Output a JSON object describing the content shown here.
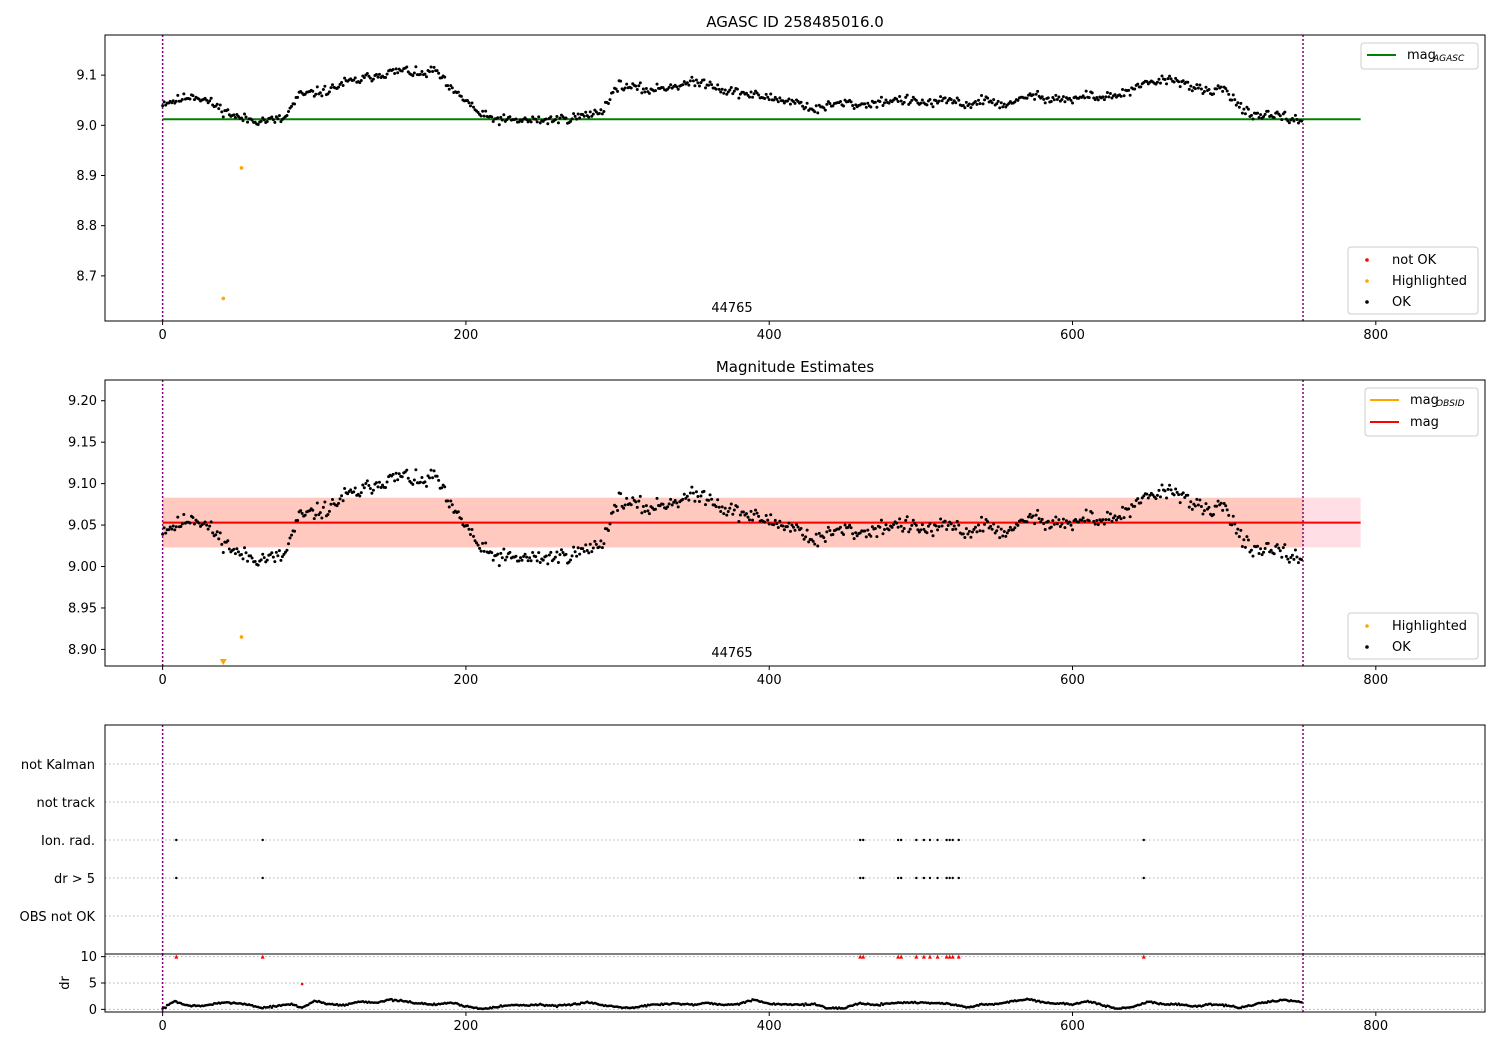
{
  "chart_data": [
    {
      "type": "scatter",
      "title": "AGASC ID 258485016.0",
      "xlim": [
        -38,
        872
      ],
      "ylim": [
        8.61,
        9.18
      ],
      "x_ticks": [
        0,
        200,
        400,
        600,
        800
      ],
      "y_ticks": [
        8.7,
        8.8,
        8.9,
        9.0,
        9.1
      ],
      "obsid_label": "44765",
      "vlines": [
        0,
        752
      ],
      "reference_line": {
        "y": 9.012,
        "x_range": [
          0,
          790
        ],
        "color": "#008000"
      },
      "legend_lines": [
        {
          "label": "mag",
          "sub": "AGASC",
          "color": "#008000"
        }
      ],
      "legend_markers": [
        {
          "label": "not OK",
          "color": "#ff0000"
        },
        {
          "label": "Highlighted",
          "color": "#ffa500"
        },
        {
          "label": "OK",
          "color": "#000000"
        }
      ],
      "highlighted_points": [
        [
          40,
          8.655
        ],
        [
          52,
          8.915
        ]
      ],
      "series_profile": [
        [
          0,
          9.045
        ],
        [
          10,
          9.05
        ],
        [
          20,
          9.06
        ],
        [
          30,
          9.048
        ],
        [
          40,
          9.03
        ],
        [
          50,
          9.015
        ],
        [
          60,
          9.01
        ],
        [
          70,
          9.01
        ],
        [
          80,
          9.012
        ],
        [
          90,
          9.06
        ],
        [
          100,
          9.065
        ],
        [
          110,
          9.07
        ],
        [
          120,
          9.085
        ],
        [
          130,
          9.09
        ],
        [
          140,
          9.1
        ],
        [
          150,
          9.105
        ],
        [
          160,
          9.11
        ],
        [
          170,
          9.1
        ],
        [
          180,
          9.11
        ],
        [
          190,
          9.07
        ],
        [
          200,
          9.05
        ],
        [
          210,
          9.02
        ],
        [
          220,
          9.012
        ],
        [
          230,
          9.01
        ],
        [
          240,
          9.01
        ],
        [
          250,
          9.01
        ],
        [
          260,
          9.012
        ],
        [
          270,
          9.015
        ],
        [
          280,
          9.02
        ],
        [
          290,
          9.03
        ],
        [
          300,
          9.08
        ],
        [
          310,
          9.075
        ],
        [
          320,
          9.07
        ],
        [
          330,
          9.075
        ],
        [
          340,
          9.08
        ],
        [
          350,
          9.085
        ],
        [
          360,
          9.085
        ],
        [
          370,
          9.07
        ],
        [
          380,
          9.065
        ],
        [
          390,
          9.06
        ],
        [
          400,
          9.055
        ],
        [
          410,
          9.05
        ],
        [
          420,
          9.045
        ],
        [
          430,
          9.03
        ],
        [
          440,
          9.04
        ],
        [
          450,
          9.045
        ],
        [
          460,
          9.04
        ],
        [
          470,
          9.045
        ],
        [
          480,
          9.05
        ],
        [
          490,
          9.05
        ],
        [
          500,
          9.045
        ],
        [
          510,
          9.045
        ],
        [
          520,
          9.05
        ],
        [
          530,
          9.04
        ],
        [
          540,
          9.05
        ],
        [
          550,
          9.045
        ],
        [
          560,
          9.04
        ],
        [
          570,
          9.06
        ],
        [
          580,
          9.055
        ],
        [
          590,
          9.055
        ],
        [
          600,
          9.05
        ],
        [
          610,
          9.06
        ],
        [
          620,
          9.055
        ],
        [
          630,
          9.06
        ],
        [
          640,
          9.07
        ],
        [
          650,
          9.085
        ],
        [
          660,
          9.09
        ],
        [
          670,
          9.09
        ],
        [
          680,
          9.075
        ],
        [
          690,
          9.065
        ],
        [
          700,
          9.075
        ],
        [
          710,
          9.04
        ],
        [
          720,
          9.015
        ],
        [
          730,
          9.02
        ],
        [
          740,
          9.015
        ],
        [
          750,
          9.01
        ]
      ],
      "n_points": 752
    },
    {
      "type": "scatter",
      "title": "Magnitude Estimates",
      "xlim": [
        -38,
        872
      ],
      "ylim": [
        8.88,
        9.225
      ],
      "x_ticks": [
        0,
        200,
        400,
        600,
        800
      ],
      "y_ticks": [
        8.9,
        8.95,
        9.0,
        9.05,
        9.1,
        9.15,
        9.2
      ],
      "obsid_label": "44765",
      "vlines": [
        0,
        752
      ],
      "mag_line": {
        "y": 9.053,
        "x_range": [
          0,
          790
        ],
        "color": "#ff0000",
        "band": [
          9.023,
          9.083
        ],
        "band_color": "#ffc0cb"
      },
      "obsid_line": {
        "y": 9.053,
        "x_range": [
          0,
          752
        ],
        "color": "#ffa500",
        "band": [
          9.023,
          9.083
        ],
        "band_color": "#ffa07a"
      },
      "legend_lines": [
        {
          "label": "mag",
          "sub": "OBSID",
          "color": "#ffa500"
        },
        {
          "label": "mag",
          "sub": "",
          "color": "#ff0000"
        }
      ],
      "legend_markers": [
        {
          "label": "Highlighted",
          "color": "#ffa500"
        },
        {
          "label": "OK",
          "color": "#000000"
        }
      ],
      "highlighted_points": [
        [
          52,
          8.915
        ]
      ],
      "clipped_marker": {
        "x": 40,
        "color": "#ffa500"
      }
    },
    {
      "type": "scatter",
      "title": "",
      "xlim": [
        -38,
        872
      ],
      "x_ticks": [
        0,
        200,
        400,
        600,
        800
      ],
      "categories": [
        "not Kalman",
        "not track",
        "Ion. rad.",
        "dr > 5",
        "OBS not OK"
      ],
      "vlines": [
        0,
        752
      ],
      "flag_points": {
        "Ion. rad.": [
          9,
          66,
          460,
          462,
          485,
          487,
          497,
          502,
          506,
          511,
          517,
          519,
          521,
          525,
          647
        ],
        "dr > 5": [
          9,
          66,
          460,
          462,
          485,
          487,
          497,
          502,
          506,
          511,
          517,
          519,
          521,
          525,
          647
        ]
      }
    },
    {
      "type": "scatter",
      "title": "",
      "ylabel": "dr",
      "xlim": [
        -38,
        872
      ],
      "ylim": [
        -0.5,
        10.5
      ],
      "x_ticks": [
        0,
        200,
        400,
        600,
        800
      ],
      "y_ticks": [
        0,
        5,
        10
      ],
      "vlines": [
        0,
        752
      ],
      "dr_threshold": 5,
      "clipped_points": [
        9,
        66,
        460,
        462,
        485,
        487,
        497,
        502,
        506,
        511,
        517,
        519,
        521,
        525,
        647
      ],
      "red_points": [
        [
          92,
          4.8
        ]
      ],
      "dr_profile": [
        [
          0,
          0.1
        ],
        [
          8,
          1.6
        ],
        [
          15,
          0.8
        ],
        [
          25,
          0.6
        ],
        [
          35,
          1.1
        ],
        [
          45,
          1.3
        ],
        [
          55,
          1.0
        ],
        [
          65,
          0.3
        ],
        [
          75,
          0.6
        ],
        [
          85,
          1.0
        ],
        [
          92,
          0.3
        ],
        [
          100,
          1.6
        ],
        [
          110,
          1.0
        ],
        [
          120,
          0.8
        ],
        [
          130,
          1.5
        ],
        [
          140,
          1.3
        ],
        [
          150,
          1.8
        ],
        [
          160,
          1.5
        ],
        [
          170,
          1.1
        ],
        [
          180,
          0.9
        ],
        [
          190,
          1.3
        ],
        [
          200,
          0.6
        ],
        [
          210,
          0.1
        ],
        [
          220,
          0.5
        ],
        [
          230,
          0.8
        ],
        [
          240,
          0.8
        ],
        [
          250,
          0.9
        ],
        [
          260,
          0.6
        ],
        [
          270,
          0.9
        ],
        [
          280,
          1.4
        ],
        [
          290,
          0.8
        ],
        [
          300,
          0.5
        ],
        [
          310,
          0.3
        ],
        [
          320,
          0.8
        ],
        [
          330,
          1.0
        ],
        [
          340,
          1.1
        ],
        [
          350,
          0.9
        ],
        [
          360,
          1.3
        ],
        [
          370,
          0.8
        ],
        [
          380,
          1.1
        ],
        [
          390,
          1.8
        ],
        [
          400,
          1.0
        ],
        [
          410,
          1.0
        ],
        [
          420,
          0.9
        ],
        [
          430,
          1.0
        ],
        [
          440,
          0.1
        ],
        [
          450,
          0.3
        ],
        [
          460,
          1.2
        ],
        [
          470,
          0.8
        ],
        [
          480,
          1.2
        ],
        [
          490,
          1.3
        ],
        [
          500,
          1.3
        ],
        [
          510,
          1.2
        ],
        [
          520,
          1.0
        ],
        [
          530,
          0.4
        ],
        [
          540,
          0.9
        ],
        [
          550,
          1.0
        ],
        [
          560,
          1.5
        ],
        [
          570,
          2.0
        ],
        [
          580,
          1.4
        ],
        [
          590,
          1.1
        ],
        [
          600,
          1.0
        ],
        [
          610,
          1.5
        ],
        [
          620,
          0.8
        ],
        [
          630,
          0.1
        ],
        [
          640,
          0.5
        ],
        [
          650,
          1.5
        ],
        [
          660,
          0.9
        ],
        [
          670,
          1.0
        ],
        [
          680,
          0.5
        ],
        [
          690,
          1.0
        ],
        [
          700,
          0.8
        ],
        [
          710,
          0.3
        ],
        [
          720,
          0.9
        ],
        [
          730,
          1.5
        ],
        [
          740,
          1.8
        ],
        [
          750,
          1.4
        ]
      ],
      "n_points": 752
    }
  ]
}
